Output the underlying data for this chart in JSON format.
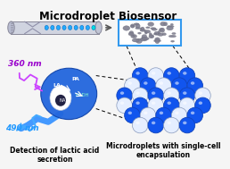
{
  "title": "Microdroplet Biosensor",
  "title_fontsize": 8.5,
  "title_fontweight": "bold",
  "bg_color": "#f5f5f5",
  "label_360nm": "360 nm",
  "label_490nm": "490 nm",
  "label_360_color": "#9900cc",
  "label_490_color": "#2299ff",
  "label_detection": "Detection of lactic acid\nsecretion",
  "label_detection_fontsize": 5.5,
  "label_microdroplets": "Microdroplets with single-cell\nencapsulation",
  "label_microdroplets_fontsize": 5.5,
  "blue_sphere_color": "#1155ee",
  "white_sphere_color": "#ddeeff",
  "box_color": "#3399ff"
}
